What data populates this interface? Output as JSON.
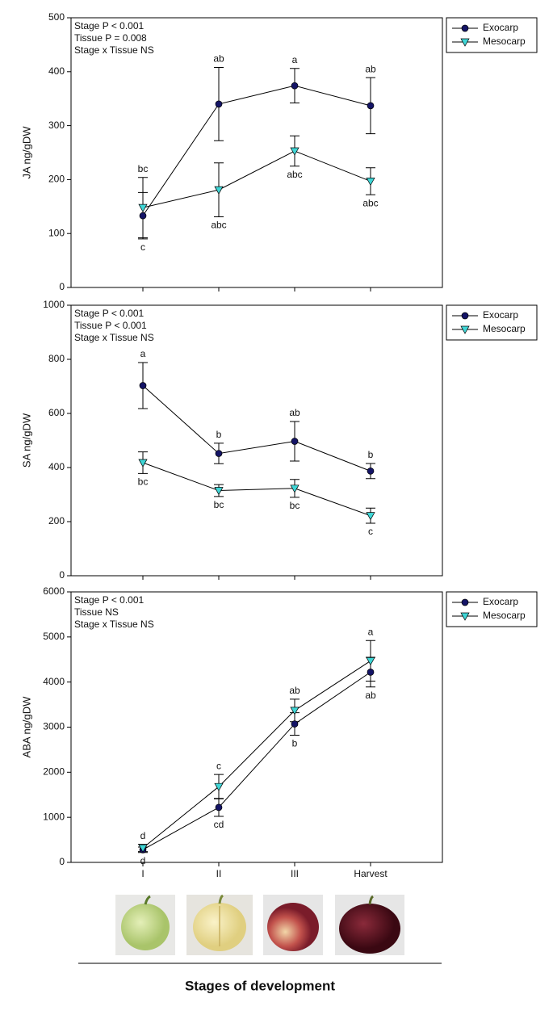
{
  "chart_data": [
    {
      "type": "line",
      "ylabel": "JA ng/gDW",
      "annotations": [
        "Stage P < 0.001",
        "Tissue P = 0.008",
        "Stage x Tissue NS"
      ],
      "categories": [
        null,
        null,
        null,
        null
      ],
      "ylim": [
        0,
        500
      ],
      "yticks": [
        0,
        100,
        200,
        300,
        400,
        500
      ],
      "legend": "outside-right",
      "series": [
        {
          "name": "Exocarp",
          "color": "#141466",
          "marker": "circle",
          "values": [
            133,
            340,
            374,
            337
          ],
          "errors": [
            43,
            68,
            32,
            52
          ],
          "letters": [
            "c",
            "ab",
            "a",
            "ab"
          ]
        },
        {
          "name": "Mesocarp",
          "color": "#3fd6d6",
          "marker": "triangle-down",
          "values": [
            148,
            181,
            253,
            197
          ],
          "errors": [
            56,
            50,
            28,
            25
          ],
          "letters": [
            "bc",
            "abc",
            "abc",
            "abc"
          ]
        }
      ]
    },
    {
      "type": "line",
      "ylabel": "SA ng/gDW",
      "annotations": [
        "Stage P < 0.001",
        "Tissue P < 0.001",
        "Stage x Tissue NS"
      ],
      "categories": [
        null,
        null,
        null,
        null
      ],
      "ylim": [
        0,
        1000
      ],
      "yticks": [
        0,
        200,
        400,
        600,
        800,
        1000
      ],
      "legend": "outside-right",
      "series": [
        {
          "name": "Exocarp",
          "color": "#141466",
          "marker": "circle",
          "values": [
            703,
            452,
            497,
            387
          ],
          "errors": [
            85,
            38,
            73,
            28
          ],
          "letters": [
            "a",
            "b",
            "ab",
            "b"
          ]
        },
        {
          "name": "Mesocarp",
          "color": "#3fd6d6",
          "marker": "triangle-down",
          "values": [
            418,
            315,
            323,
            222
          ],
          "errors": [
            40,
            22,
            33,
            28
          ],
          "letters": [
            "bc",
            "bc",
            "bc",
            "c"
          ]
        }
      ]
    },
    {
      "type": "line",
      "ylabel": "ABA ng/gDW",
      "xlabel": "Stages of development",
      "annotations": [
        "Stage P < 0.001",
        "Tissue NS",
        "Stage x Tissue NS"
      ],
      "categories": [
        "I",
        "II",
        "III",
        "Harvest"
      ],
      "ylim": [
        0,
        6000
      ],
      "yticks": [
        0,
        1000,
        2000,
        3000,
        4000,
        5000,
        6000
      ],
      "legend": "outside-right",
      "series": [
        {
          "name": "Exocarp",
          "color": "#141466",
          "marker": "circle",
          "values": [
            280,
            1220,
            3070,
            4220
          ],
          "errors": [
            60,
            200,
            250,
            330
          ],
          "letters": [
            "d",
            "cd",
            "b",
            "ab"
          ]
        },
        {
          "name": "Mesocarp",
          "color": "#3fd6d6",
          "marker": "triangle-down",
          "values": [
            320,
            1680,
            3370,
            4470
          ],
          "errors": [
            80,
            270,
            250,
            450
          ],
          "letters": [
            "d",
            "c",
            "ab",
            "a"
          ]
        }
      ]
    }
  ]
}
